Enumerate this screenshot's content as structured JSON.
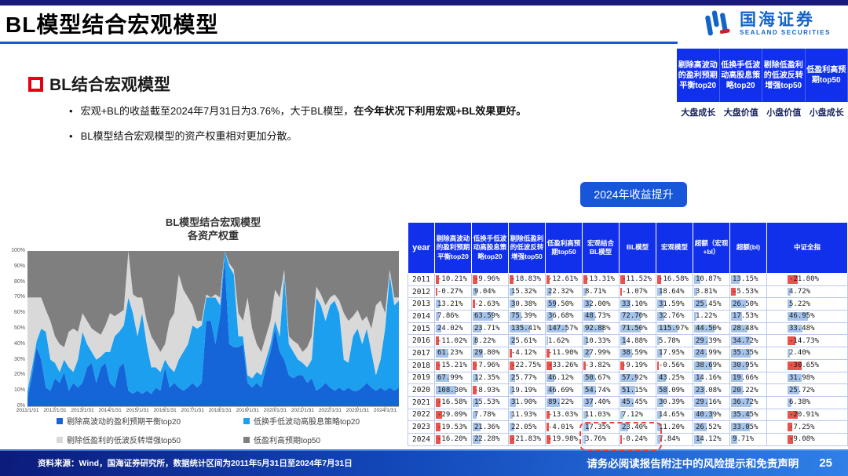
{
  "header": {
    "title": "BL模型结合宏观模型",
    "logo": {
      "cn": "国海证券",
      "en": "SEALAND SECURITIES"
    },
    "style_table": {
      "columns": [
        "剔除高波动的盈利预期平衡top20",
        "低换手低波动高股息策略top20",
        "剔除低盈利的低波反转增强top50",
        "低盈利高预期top50"
      ],
      "styles": [
        "大盘成长",
        "大盘价值",
        "小盘价值",
        "小盘成长"
      ]
    }
  },
  "section": {
    "heading": "BL结合宏观模型",
    "bullet_glyph": "•",
    "bullets": [
      {
        "text": "宏观+BL的收益截至2024年7月31日为3.76%，大于BL模型，",
        "bold": "在今年状况下利用宏观+BL效果更好。"
      },
      {
        "text": "BL模型结合宏观模型的资产权重相对更加分散。",
        "bold": ""
      }
    ]
  },
  "callout": {
    "label": "2024年收益提升"
  },
  "chart_data": {
    "type": "area",
    "stacked": true,
    "title_lines": [
      "BL模型结合宏观模型",
      "各资产权重"
    ],
    "ylim": [
      0,
      100
    ],
    "ytick_step": 10,
    "ytick_suffix": "%",
    "x_description": "月度权重序列，2011/1/31 至 2024/7/31（约每2个月一个采样点，数值为目测近似）",
    "xtick_labels": [
      "2011/1/31",
      "2012/1/31",
      "2013/1/31",
      "2014/1/31",
      "2015/1/31",
      "2016/1/31",
      "2017/1/31",
      "2018/1/31",
      "2019/1/31",
      "2020/1/31",
      "2021/1/31",
      "2022/1/31",
      "2023/1/31",
      "2024/1/31"
    ],
    "xtick_index": [
      0,
      6,
      12,
      18,
      24,
      30,
      36,
      42,
      48,
      54,
      60,
      66,
      72,
      78
    ],
    "stacking_note": "cum = 堆叠后该序列的上边界权重(%)；该序列权重 = cum − 上一序列cum；最后一个序列填充至100%",
    "series": [
      {
        "name": "剔除高波动的盈利预期平衡top20",
        "color": "#1565d8",
        "cum": [
          5,
          20,
          38,
          30,
          12,
          10,
          18,
          15,
          22,
          10,
          15,
          12,
          15,
          25,
          28,
          15,
          25,
          28,
          15,
          12,
          25,
          28,
          10,
          8,
          10,
          8,
          10,
          8,
          12,
          10,
          25,
          12,
          15,
          12,
          10,
          12,
          15,
          12,
          15,
          55,
          55,
          40,
          58,
          95,
          40,
          38,
          38,
          40,
          15,
          12,
          15,
          12,
          25,
          35,
          50,
          35,
          30,
          20,
          18,
          20,
          20,
          15,
          18,
          10,
          12,
          15,
          12,
          10,
          12,
          10,
          12,
          10,
          10,
          12,
          15,
          12,
          10,
          12,
          10,
          12,
          10,
          12
        ]
      },
      {
        "name": "低换手低波动高股息策略top20",
        "color": "#1d9ff0",
        "cum": [
          10,
          25,
          42,
          50,
          48,
          30,
          28,
          22,
          30,
          25,
          22,
          30,
          48,
          40,
          35,
          30,
          32,
          35,
          35,
          45,
          48,
          52,
          70,
          60,
          45,
          60,
          40,
          25,
          25,
          22,
          30,
          25,
          22,
          30,
          35,
          40,
          52,
          50,
          52,
          70,
          70,
          70,
          65,
          100,
          90,
          85,
          45,
          45,
          20,
          18,
          22,
          20,
          30,
          40,
          55,
          45,
          85,
          40,
          35,
          30,
          28,
          25,
          30,
          70,
          65,
          55,
          65,
          68,
          60,
          30,
          28,
          45,
          50,
          40,
          50,
          35,
          20,
          30,
          50,
          85,
          65,
          68
        ]
      },
      {
        "name": "剔除低盈利的低波反转增强top50",
        "color": "#d9d9d9",
        "cum": [
          70,
          70,
          70,
          70,
          62,
          55,
          45,
          40,
          38,
          48,
          50,
          48,
          60,
          55,
          50,
          48,
          46,
          52,
          60,
          58,
          60,
          62,
          100,
          72,
          70,
          70,
          55,
          45,
          40,
          35,
          40,
          55,
          60,
          85,
          75,
          70,
          65,
          55,
          55,
          72,
          70,
          72,
          70,
          100,
          92,
          88,
          60,
          55,
          70,
          50,
          40,
          35,
          45,
          55,
          75,
          70,
          88,
          45,
          42,
          40,
          35,
          38,
          45,
          77,
          72,
          65,
          70,
          72,
          68,
          60,
          55,
          58,
          62,
          55,
          58,
          50,
          65,
          68,
          60,
          88,
          70,
          70
        ]
      },
      {
        "name": "低盈利高预期top50",
        "color": "#7f7f7f",
        "cum": null
      }
    ]
  },
  "table": {
    "columns": [
      "year",
      "剔除高波动的盈利预期平衡top20",
      "低换手低波动高股息策略top20",
      "剔除低盈利的低波反转增强top50",
      "低盈利高预期top50",
      "宏观结合BL模型",
      "BL模型",
      "宏观模型",
      "超额（宏观+bl）",
      "超额(bl)",
      "中证全指"
    ],
    "rows": [
      {
        "year": "2011",
        "values": [
          "-10.21%",
          "-9.96%",
          "-18.83%",
          "-12.61%",
          "-13.31%",
          "-11.52%",
          "-16.58%",
          "10.87%",
          "13.15%",
          "-21.80%"
        ]
      },
      {
        "year": "2012",
        "values": [
          "-0.27%",
          "9.04%",
          "15.32%",
          "22.32%",
          "8.71%",
          "-1.07%",
          "18.64%",
          "3.81%",
          "-5.53%",
          "4.72%"
        ]
      },
      {
        "year": "2013",
        "values": [
          "13.21%",
          "-2.63%",
          "30.38%",
          "59.50%",
          "32.00%",
          "33.10%",
          "31.59%",
          "25.45%",
          "26.50%",
          "5.22%"
        ]
      },
      {
        "year": "2014",
        "values": [
          "7.86%",
          "63.59%",
          "75.39%",
          "36.68%",
          "48.73%",
          "72.70%",
          "32.76%",
          "1.22%",
          "17.53%",
          "46.95%"
        ]
      },
      {
        "year": "2015",
        "values": [
          "24.02%",
          "23.71%",
          "135.41%",
          "147.57%",
          "92.88%",
          "71.50%",
          "115.97%",
          "44.50%",
          "28.48%",
          "33.48%"
        ]
      },
      {
        "year": "2016",
        "values": [
          "-11.02%",
          "8.22%",
          "25.61%",
          "1.62%",
          "10.33%",
          "14.88%",
          "5.78%",
          "29.39%",
          "34.72%",
          "-14.73%"
        ]
      },
      {
        "year": "2017",
        "values": [
          "61.23%",
          "29.80%",
          "-4.12%",
          "-11.90%",
          "27.99%",
          "38.59%",
          "17.95%",
          "24.99%",
          "35.35%",
          "2.40%"
        ]
      },
      {
        "year": "2018",
        "values": [
          "-15.21%",
          "-7.96%",
          "-22.75%",
          "-33.26%",
          "-3.82%",
          "-9.19%",
          "-0.56%",
          "38.69%",
          "30.95%",
          "-30.65%"
        ]
      },
      {
        "year": "2019",
        "values": [
          "67.99%",
          "12.35%",
          "25.77%",
          "46.12%",
          "50.67%",
          "57.92%",
          "43.25%",
          "14.16%",
          "19.66%",
          "31.98%"
        ]
      },
      {
        "year": "2020",
        "values": [
          "108.30%",
          "-8.93%",
          "19.19%",
          "46.69%",
          "54.74%",
          "51.15%",
          "58.09%",
          "23.08%",
          "20.22%",
          "25.72%"
        ]
      },
      {
        "year": "2021",
        "values": [
          "-16.58%",
          "15.53%",
          "31.90%",
          "89.22%",
          "37.40%",
          "45.45%",
          "30.39%",
          "29.16%",
          "36.72%",
          "6.38%"
        ]
      },
      {
        "year": "2022",
        "values": [
          "-29.09%",
          "7.78%",
          "11.93%",
          "-13.03%",
          "11.03%",
          "7.12%",
          "14.65%",
          "40.39%",
          "35.45%",
          "-20.91%"
        ]
      },
      {
        "year": "2023",
        "values": [
          "-19.53%",
          "21.36%",
          "22.05%",
          "-4.01%",
          "17.35%",
          "23.40%",
          "11.20%",
          "26.52%",
          "33.05%",
          "-7.25%"
        ]
      },
      {
        "year": "2024",
        "values": [
          "-16.20%",
          "22.28%",
          "-21.83%",
          "-19.98%",
          "3.76%",
          "-0.24%",
          "7.84%",
          "14.12%",
          "9.71%",
          "-9.08%"
        ]
      }
    ]
  },
  "footer": {
    "source": "资料来源：Wind，国海证券研究所，数据统计区间为2011年5月31日至2024年7月31日",
    "disclaimer": "请务必阅读报告附注中的风险提示和免责声明",
    "page": "25"
  },
  "colors": {
    "accent_blue": "#1a56d8",
    "table_header_blue": "#1130ec",
    "bar_positive": "#8eb4e3",
    "bar_negative": "#e84038",
    "highlight_red": "#e8443f",
    "logo_blue": "#1464c8",
    "red_square": "#e60012",
    "top_bar_navy": "#1a1a78",
    "footer_gradient": [
      "#0c1b7a",
      "#1246b8",
      "#2f80e8"
    ]
  }
}
